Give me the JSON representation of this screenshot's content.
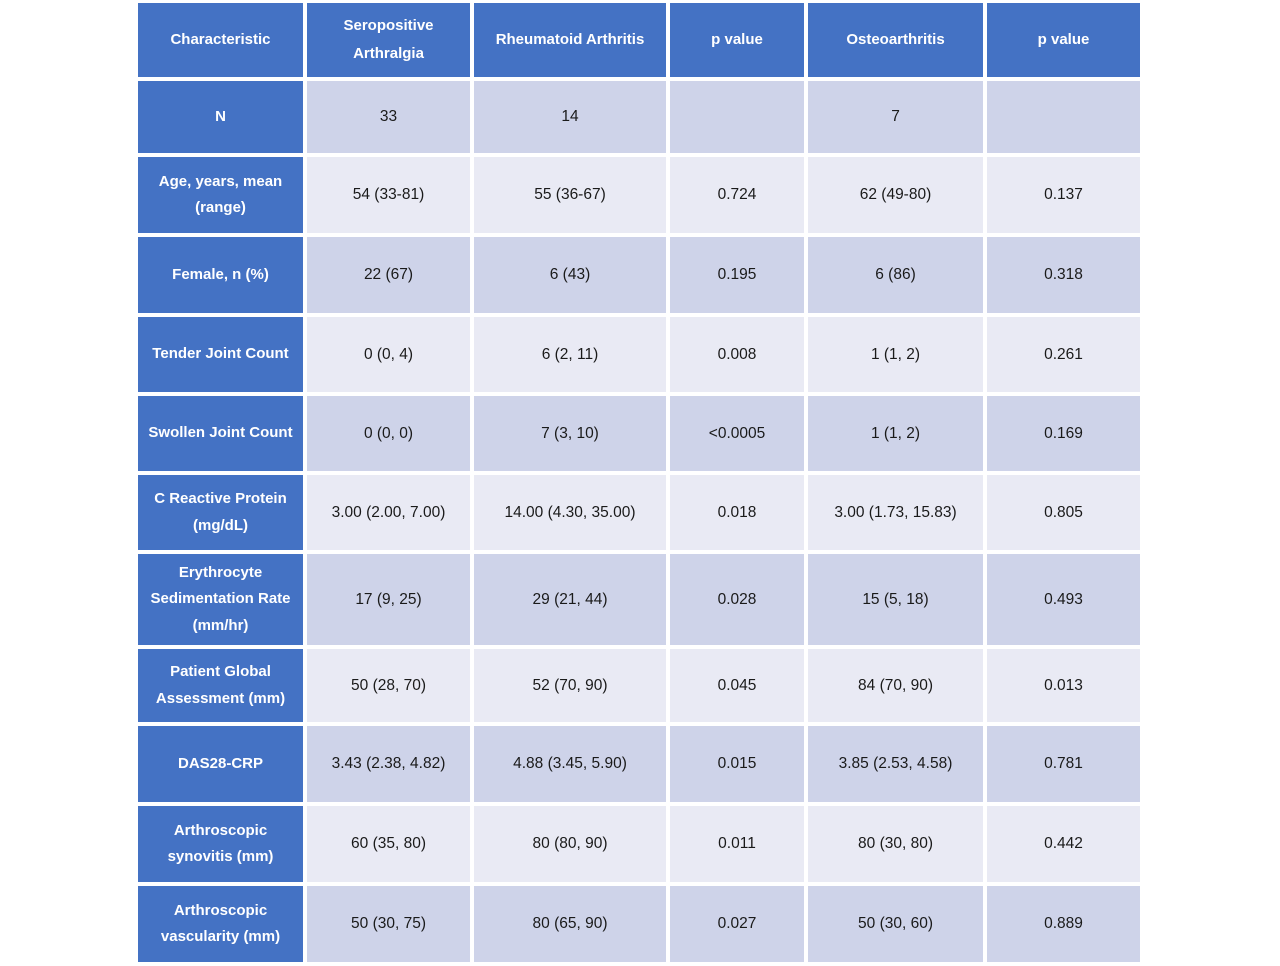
{
  "colors": {
    "header_blue": "#4472C4",
    "band_dark": "#CED3E9",
    "band_light": "#E9EAF4",
    "header_text": "#ffffff",
    "body_text": "#1a1a1a"
  },
  "table": {
    "columns": [
      "Characteristic",
      "Seropositive Arthralgia",
      "Rheumatoid Arthritis",
      "p value",
      "Osteoarthritis",
      "p value"
    ],
    "rows": [
      {
        "label": "N",
        "cells": [
          "33",
          "14",
          "",
          "7",
          ""
        ]
      },
      {
        "label": "Age, years, mean (range)",
        "cells": [
          "54 (33-81)",
          "55 (36-67)",
          "0.724",
          "62 (49-80)",
          "0.137"
        ]
      },
      {
        "label": "Female, n (%)",
        "cells": [
          "22 (67)",
          "6 (43)",
          "0.195",
          "6 (86)",
          "0.318"
        ]
      },
      {
        "label": "Tender Joint Count",
        "cells": [
          "0 (0, 4)",
          "6 (2, 11)",
          "0.008",
          "1 (1, 2)",
          "0.261"
        ]
      },
      {
        "label": "Swollen Joint Count",
        "cells": [
          "0 (0, 0)",
          "7 (3, 10)",
          "<0.0005",
          "1 (1, 2)",
          "0.169"
        ]
      },
      {
        "label": "C Reactive Protein (mg/dL)",
        "cells": [
          "3.00 (2.00, 7.00)",
          "14.00 (4.30, 35.00)",
          "0.018",
          "3.00 (1.73, 15.83)",
          "0.805"
        ]
      },
      {
        "label": "Erythrocyte Sedimentation Rate (mm/hr)",
        "cells": [
          "17 (9, 25)",
          "29 (21, 44)",
          "0.028",
          "15 (5, 18)",
          "0.493"
        ]
      },
      {
        "label": "Patient Global Assessment (mm)",
        "cells": [
          "50 (28, 70)",
          "52 (70, 90)",
          "0.045",
          "84 (70, 90)",
          "0.013"
        ]
      },
      {
        "label": "DAS28-CRP",
        "cells": [
          "3.43 (2.38, 4.82)",
          "4.88 (3.45, 5.90)",
          "0.015",
          "3.85 (2.53, 4.58)",
          "0.781"
        ]
      },
      {
        "label": "Arthroscopic synovitis (mm)",
        "cells": [
          "60 (35, 80)",
          "80 (80, 90)",
          "0.011",
          "80 (30, 80)",
          "0.442"
        ]
      },
      {
        "label": "Arthroscopic vascularity (mm)",
        "cells": [
          "50 (30, 75)",
          "80 (65, 90)",
          "0.027",
          "50 (30, 60)",
          "0.889"
        ]
      }
    ]
  }
}
